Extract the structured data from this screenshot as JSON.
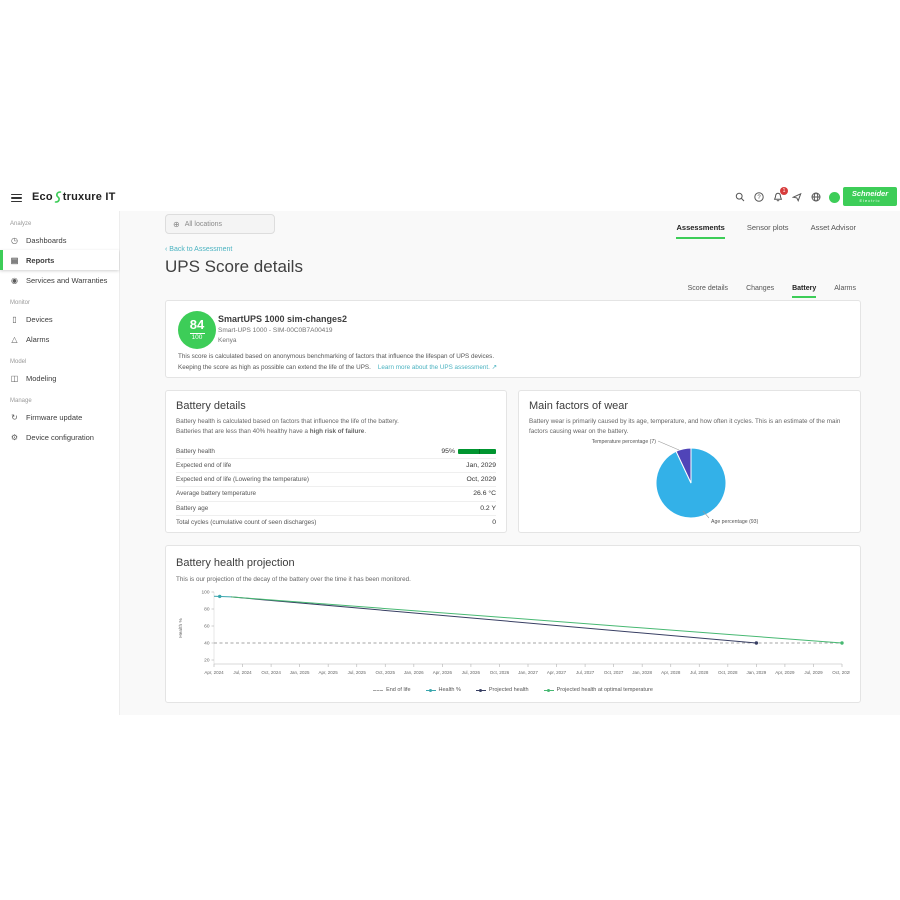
{
  "header": {
    "logo_eco": "Eco",
    "logo_rest": "truxure IT",
    "notification_count": "1",
    "icons": [
      "search-icon",
      "help-icon",
      "bell-icon",
      "feedback-icon",
      "settings-icon",
      "avatar"
    ],
    "brand_line1": "Schneider",
    "brand_line2": "Electric",
    "brand_color": "#3dcd58"
  },
  "toolbar": {
    "location_filter": "All locations",
    "location_icon": "⊕"
  },
  "sidebar": {
    "sections": [
      {
        "label": "Analyze",
        "items": [
          {
            "label": "Dashboards",
            "glyph": "◷"
          },
          {
            "label": "Reports",
            "glyph": "▤",
            "active": true
          },
          {
            "label": "Services and Warranties",
            "glyph": "◉"
          }
        ]
      },
      {
        "label": "Monitor",
        "items": [
          {
            "label": "Devices",
            "glyph": "▯"
          },
          {
            "label": "Alarms",
            "glyph": "△"
          }
        ]
      },
      {
        "label": "Model",
        "items": [
          {
            "label": "Modeling",
            "glyph": "◫"
          }
        ]
      },
      {
        "label": "Manage",
        "items": [
          {
            "label": "Firmware update",
            "glyph": "↻"
          },
          {
            "label": "Device configuration",
            "glyph": "⚙"
          }
        ]
      }
    ]
  },
  "main_tabs": [
    {
      "label": "Assessments",
      "active": true
    },
    {
      "label": "Sensor plots",
      "active": false
    },
    {
      "label": "Asset Advisor",
      "active": false
    }
  ],
  "page": {
    "back_link": "‹ Back to Assessment",
    "title": "UPS Score details"
  },
  "sub_tabs": [
    {
      "label": "Score details",
      "active": false
    },
    {
      "label": "Changes",
      "active": false
    },
    {
      "label": "Battery",
      "active": true
    },
    {
      "label": "Alarms",
      "active": false
    }
  ],
  "score_card": {
    "score": "84",
    "score_max": "100",
    "device_name": "SmartUPS 1000 sim-changes2",
    "device_model": "Smart-UPS 1000 - SIM-00C0B7A00419",
    "location": "Kenya",
    "description_line1": "This score is calculated based on anonymous benchmarking of factors that influence the lifespan of UPS devices.",
    "description_line2": "Keeping the score as high as possible can extend the life of the UPS.",
    "learn_more": "Learn more about the UPS assessment.",
    "external_icon": "↗"
  },
  "battery_details": {
    "title": "Battery details",
    "description_line1": "Battery health is calculated based on factors that influence the life of the battery.",
    "description_line2_prefix": "Batteries that are less than 40% healthy have a ",
    "description_bold": "high risk of failure",
    "description_suffix": ".",
    "rows": [
      {
        "label": "Battery health",
        "value": "95%"
      },
      {
        "label": "Expected end of life",
        "value": "Jan, 2029"
      },
      {
        "label": "Expected end of life (Lowering the temperature)",
        "value": "Oct, 2029"
      },
      {
        "label": "Average battery temperature",
        "value": "26.6 °C"
      },
      {
        "label": "Battery age",
        "value": "0.2 Y"
      },
      {
        "label": "Total cycles (cumulative count of seen discharges)",
        "value": "0"
      }
    ]
  },
  "wear_card": {
    "title": "Main factors of wear",
    "description": "Battery wear is primarily caused by its age, temperature, and how often it cycles. This is an estimate of the main factors causing wear on the battery."
  },
  "projection_card": {
    "title": "Battery health projection",
    "description": "This is our projection of the decay of the battery over the time it has been monitored."
  },
  "chart_data": [
    {
      "type": "pie",
      "title": "Main factors of wear",
      "slices": [
        {
          "label": "Age percentage (93)",
          "value": 93,
          "color": "#33b1e8"
        },
        {
          "label": "Temperature percentage (7)",
          "value": 7,
          "color": "#5044b8"
        }
      ],
      "start_at_top": true
    },
    {
      "type": "line",
      "title": "Battery health projection",
      "xlabel": "",
      "ylabel": "Health %",
      "ylim": [
        20,
        100
      ],
      "y_ticks": [
        100,
        80,
        60,
        40,
        20
      ],
      "x_ticks": [
        "Apr, 2024",
        "Jul, 2024",
        "Oct, 2024",
        "Jan, 2025",
        "Apr, 2025",
        "Jul, 2025",
        "Oct, 2025",
        "Jan, 2026",
        "Apr, 2026",
        "Jul, 2026",
        "Oct, 2026",
        "Jan, 2027",
        "Apr, 2027",
        "Jul, 2027",
        "Oct, 2027",
        "Jan, 2028",
        "Apr, 2028",
        "Jul, 2028",
        "Oct, 2028",
        "Jan, 2029",
        "Apr, 2029",
        "Jul, 2029",
        "Oct, 2029"
      ],
      "legend_position": "bottom",
      "series": [
        {
          "name": "End of life",
          "color": "#a5a5a5",
          "style": "dashed",
          "points": [
            [
              0,
              40
            ],
            [
              22,
              40
            ]
          ]
        },
        {
          "name": "Health %",
          "color": "#3aa6ad",
          "style": "solid",
          "points": [
            [
              0,
              95
            ],
            [
              0.6,
              94.2
            ]
          ],
          "marker": [
            0.2,
            94.8
          ]
        },
        {
          "name": "Projected health",
          "color": "#383f63",
          "style": "solid",
          "points": [
            [
              0.6,
              94.2
            ],
            [
              19,
              40
            ]
          ],
          "marker": [
            19,
            40
          ]
        },
        {
          "name": "Projected health at optimal temperature",
          "color": "#47b872",
          "style": "solid",
          "points": [
            [
              0.6,
              94.2
            ],
            [
              22,
              40
            ]
          ],
          "marker": [
            22,
            40
          ]
        }
      ]
    }
  ]
}
